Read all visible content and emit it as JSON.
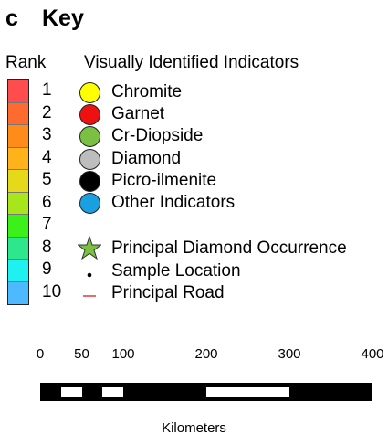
{
  "panel_letter": "c",
  "title": "Key",
  "rank_heading": "Rank",
  "indicators_heading": "Visually Identified Indicators",
  "ranks": [
    {
      "label": "1",
      "color": "#ff4d4d"
    },
    {
      "label": "2",
      "color": "#ff6a2e"
    },
    {
      "label": "3",
      "color": "#ff8c1a"
    },
    {
      "label": "4",
      "color": "#ffb21a"
    },
    {
      "label": "5",
      "color": "#e6d91a"
    },
    {
      "label": "6",
      "color": "#a6e61a"
    },
    {
      "label": "7",
      "color": "#3cf01a"
    },
    {
      "label": "8",
      "color": "#2ee68c"
    },
    {
      "label": "9",
      "color": "#1ff0f0"
    },
    {
      "label": "10",
      "color": "#4dbaff"
    }
  ],
  "indicators": [
    {
      "label": "Chromite",
      "color": "#ffff00",
      "icon": "yellow-circle-icon"
    },
    {
      "label": "Garnet",
      "color": "#ee1111",
      "icon": "red-circle-icon"
    },
    {
      "label": "Cr-Diopside",
      "color": "#7ac143",
      "icon": "green-circle-icon"
    },
    {
      "label": "Diamond",
      "color": "#bdbdbd",
      "icon": "gray-circle-icon"
    },
    {
      "label": "Picro-ilmenite",
      "color": "#000000",
      "icon": "black-circle-icon"
    },
    {
      "label": "Other Indicators",
      "color": "#1a9fe0",
      "icon": "blue-circle-icon"
    }
  ],
  "symbols": [
    {
      "label": "Principal Diamond Occurrence",
      "icon": "star-icon",
      "color": "#7ac143"
    },
    {
      "label": "Sample Location",
      "icon": "dot-icon",
      "color": "#000000"
    },
    {
      "label": "Principal Road",
      "icon": "road-line-icon",
      "color": "#e03a3a"
    }
  ],
  "scale": {
    "ticks": [
      "0",
      "50",
      "100",
      "200",
      "300",
      "400"
    ],
    "tick_values": [
      0,
      50,
      100,
      200,
      300,
      400
    ],
    "white_segments": [
      [
        25,
        50
      ],
      [
        75,
        100
      ],
      [
        200,
        300
      ]
    ],
    "max": 400,
    "units": "Kilometers"
  }
}
